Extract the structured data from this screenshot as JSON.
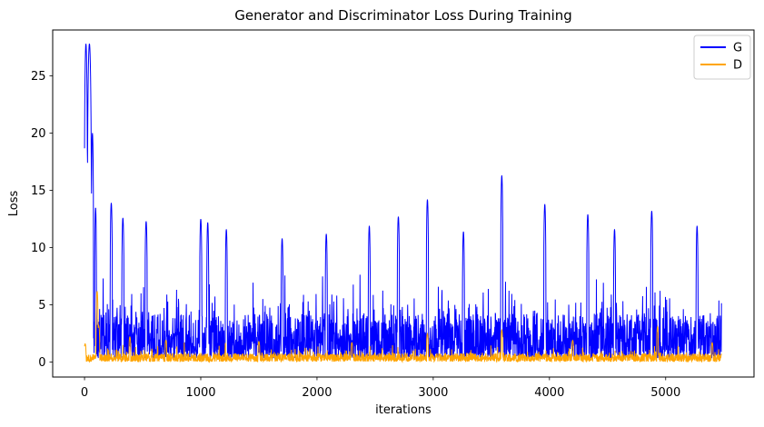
{
  "figure": {
    "background": "#ffffff",
    "text_color": "#000000",
    "spine_color": "#000000"
  },
  "chart_data": {
    "type": "line",
    "title": "Generator and Discriminator Loss During Training",
    "xlabel": "iterations",
    "ylabel": "Loss",
    "xlim": [
      -274,
      5760
    ],
    "ylim": [
      -1.3,
      29.0
    ],
    "xticks": [
      0,
      1000,
      2000,
      3000,
      4000,
      5000
    ],
    "yticks": [
      0,
      5,
      10,
      15,
      20,
      25
    ],
    "grid": false,
    "legend": {
      "position": "upper right",
      "entries": [
        {
          "label": "G",
          "color": "#0000ff"
        },
        {
          "label": "D",
          "color": "#ffa500"
        }
      ]
    },
    "n_iterations": 5480,
    "sample_step": 2,
    "noise_seed": 1337,
    "series": [
      {
        "name": "G",
        "color": "#0000ff",
        "description": "Generator loss: dense noisy band ~0.4-5 with frequent bursts to 6-10; initial double spike to ~27.8 within the first ~90 iterations, then stepped decay",
        "band": {
          "base": 0.35,
          "amp": 3.9,
          "pow": 1.6,
          "burst_threshold": 0.86,
          "burst_amp": 5.2
        },
        "peaks": [
          [
            12,
            27.8,
            14
          ],
          [
            42,
            27.8,
            18
          ],
          [
            68,
            20.0,
            10
          ],
          [
            95,
            13.5,
            8
          ],
          [
            230,
            13.9,
            10
          ],
          [
            330,
            12.6,
            10
          ],
          [
            530,
            12.3,
            10
          ],
          [
            1000,
            12.5,
            10
          ],
          [
            1060,
            12.2,
            9
          ],
          [
            1220,
            11.6,
            9
          ],
          [
            1700,
            10.8,
            9
          ],
          [
            2080,
            11.2,
            9
          ],
          [
            2450,
            11.9,
            9
          ],
          [
            2700,
            12.7,
            10
          ],
          [
            2950,
            14.2,
            10
          ],
          [
            3260,
            11.4,
            9
          ],
          [
            3590,
            16.3,
            10
          ],
          [
            3960,
            13.8,
            10
          ],
          [
            4330,
            12.9,
            10
          ],
          [
            4560,
            11.6,
            9
          ],
          [
            4880,
            13.2,
            10
          ],
          [
            5270,
            11.9,
            9
          ]
        ]
      },
      {
        "name": "D",
        "color": "#ffa500",
        "description": "Discriminator loss: low noisy band ~0-1.2 with occasional spikes ~1.5-3; early spike to ~6.2 near iteration 110",
        "band": {
          "base": 0.04,
          "amp": 0.72,
          "pow": 1.3,
          "burst_threshold": 0.9,
          "burst_amp": 1.05
        },
        "peaks": [
          [
            5,
            1.6,
            8
          ],
          [
            108,
            6.2,
            9
          ],
          [
            122,
            3.2,
            9
          ],
          [
            390,
            2.2,
            8
          ],
          [
            700,
            1.9,
            8
          ],
          [
            1500,
            1.8,
            8
          ],
          [
            2300,
            1.7,
            8
          ],
          [
            2950,
            2.5,
            8
          ],
          [
            3590,
            2.8,
            8
          ],
          [
            4200,
            1.9,
            8
          ],
          [
            4930,
            3.1,
            8
          ],
          [
            5400,
            1.7,
            8
          ]
        ]
      }
    ]
  }
}
